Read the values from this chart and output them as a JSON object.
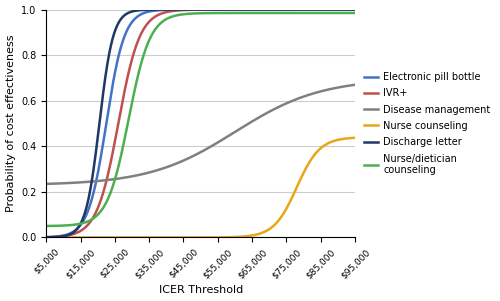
{
  "title": "",
  "xlabel": "ICER Threshold",
  "ylabel": "Probability of cost effectiveness",
  "xlim": [
    5000,
    95000
  ],
  "ylim": [
    0,
    1.0
  ],
  "xticks": [
    5000,
    15000,
    25000,
    35000,
    45000,
    55000,
    65000,
    75000,
    85000,
    95000
  ],
  "yticks": [
    0,
    0.2,
    0.4,
    0.6,
    0.8,
    1.0
  ],
  "lines": [
    {
      "label": "Electronic pill bottle",
      "color": "#4472C4",
      "type": "sigmoid",
      "midpoint": 22500,
      "steepness": 0.00038,
      "y_min": 0.0,
      "y_max": 1.0,
      "lw": 1.8
    },
    {
      "label": "IVR+",
      "color": "#C0504D",
      "type": "sigmoid",
      "midpoint": 26000,
      "steepness": 0.00032,
      "y_min": 0.0,
      "y_max": 1.0,
      "lw": 1.8
    },
    {
      "label": "Disease management",
      "color": "#808080",
      "type": "linear_sigmoid",
      "x0": 5000,
      "y0": 0.235,
      "x1": 95000,
      "y1": 0.67,
      "midpoint": 60000,
      "steepness": 8e-05,
      "lw": 1.8
    },
    {
      "label": "Nurse counseling",
      "color": "#E6A817",
      "type": "sigmoid",
      "midpoint": 78000,
      "steepness": 0.0003,
      "y_min": 0.0,
      "y_max": 0.44,
      "lw": 1.8
    },
    {
      "label": "Discharge letter",
      "color": "#1F3864",
      "type": "sigmoid",
      "midpoint": 20500,
      "steepness": 0.0005,
      "y_min": 0.0,
      "y_max": 1.0,
      "lw": 1.8
    },
    {
      "label": "Nurse/dietician\ncounseling",
      "color": "#4CAF50",
      "type": "sigmoid",
      "midpoint": 29000,
      "steepness": 0.00032,
      "y_min": 0.05,
      "y_max": 0.985,
      "lw": 1.8
    }
  ],
  "background_color": "#ffffff",
  "grid_color": "#cccccc",
  "figsize": [
    5.0,
    3.01
  ],
  "dpi": 100
}
